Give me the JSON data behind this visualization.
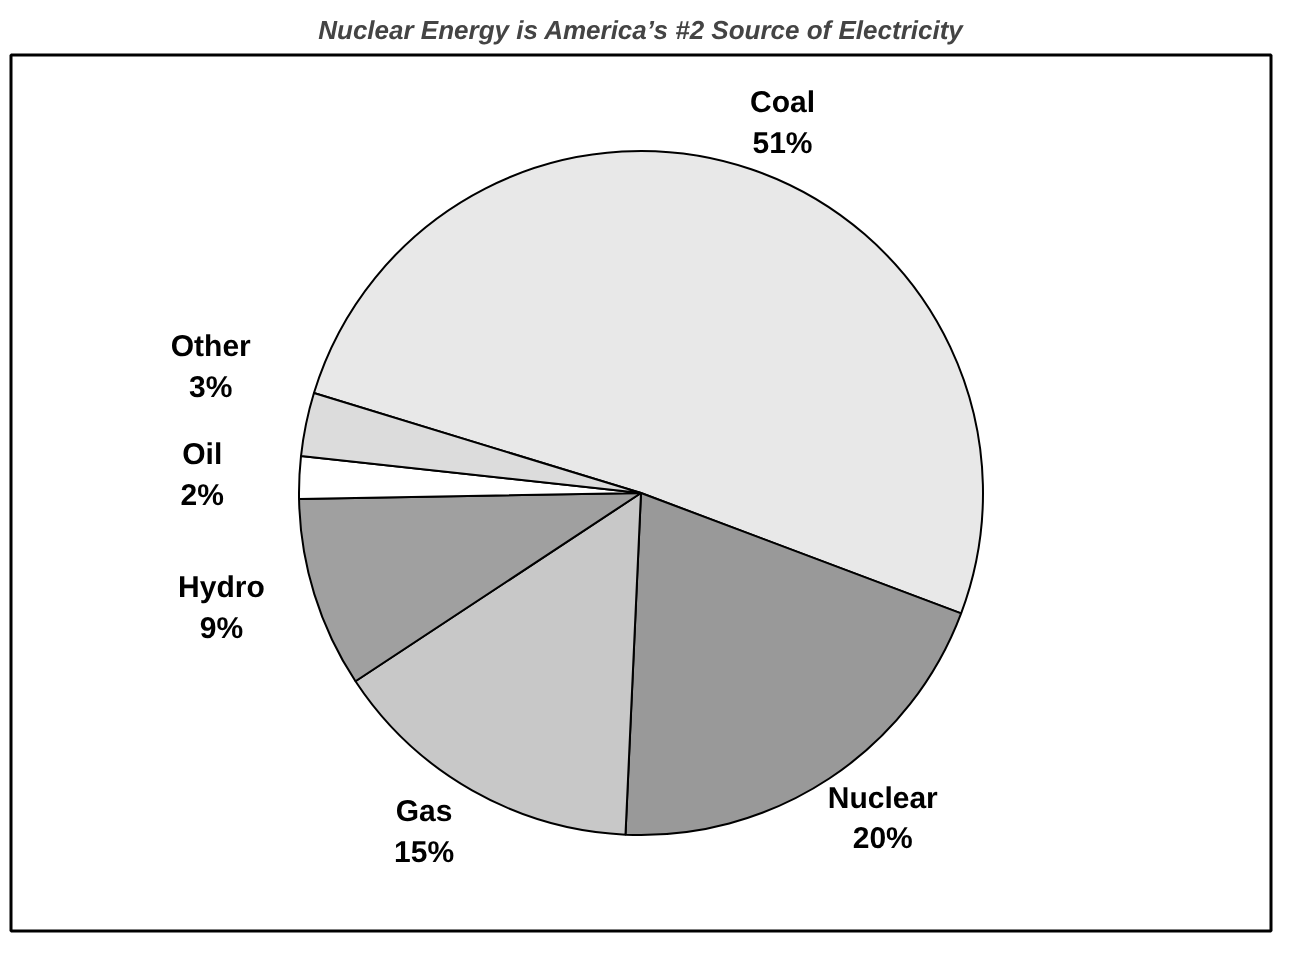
{
  "chart_data": {
    "type": "pie",
    "title": "Nuclear Energy is America’s #2 Source of Electricity",
    "categories": [
      "Coal",
      "Nuclear",
      "Gas",
      "Hydro",
      "Oil",
      "Other"
    ],
    "values": [
      51,
      20,
      15,
      9,
      2,
      3
    ],
    "colors": [
      "#e8e8e8",
      "#999999",
      "#c8c8c8",
      "#a0a0a0",
      "#ffffff",
      "#dcdcdc"
    ],
    "value_labels": [
      "51%",
      "20%",
      "15%",
      "9%",
      "2%",
      "3%"
    ]
  }
}
